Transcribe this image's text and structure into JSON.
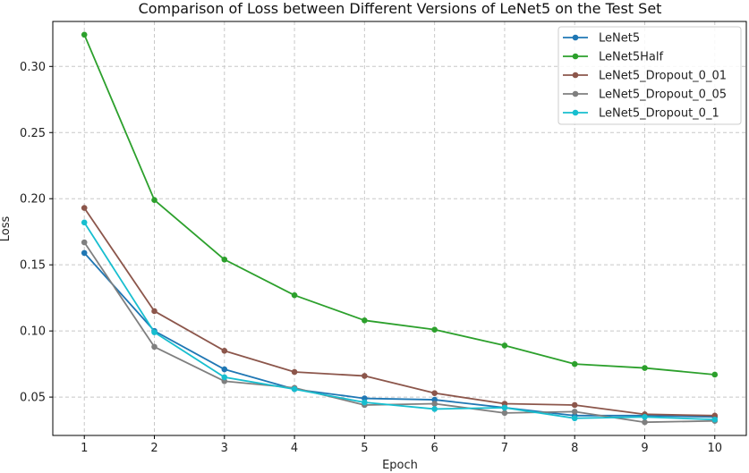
{
  "chart_data": {
    "type": "line",
    "title": "Comparison of Loss between Different Versions of LeNet5 on the Test Set",
    "xlabel": "Epoch",
    "ylabel": "Loss",
    "x": [
      1,
      2,
      3,
      4,
      5,
      6,
      7,
      8,
      9,
      10
    ],
    "xticks": [
      "1",
      "2",
      "3",
      "4",
      "5",
      "6",
      "7",
      "8",
      "9",
      "10"
    ],
    "yticks": [
      "0.05",
      "0.10",
      "0.15",
      "0.20",
      "0.25",
      "0.30"
    ],
    "ylim": [
      0.021,
      0.334
    ],
    "xlim": [
      0.55,
      10.45
    ],
    "grid": true,
    "legend_position": "top-right",
    "series": [
      {
        "name": "LeNet5",
        "color": "#1f77b4",
        "values": [
          0.159,
          0.1,
          0.071,
          0.056,
          0.049,
          0.048,
          0.042,
          0.036,
          0.036,
          0.035
        ]
      },
      {
        "name": "LeNet5Half",
        "color": "#2ca02c",
        "values": [
          0.324,
          0.199,
          0.154,
          0.127,
          0.108,
          0.101,
          0.089,
          0.075,
          0.072,
          0.067
        ]
      },
      {
        "name": "LeNet5_Dropout_0_01",
        "color": "#8c564b",
        "values": [
          0.193,
          0.115,
          0.085,
          0.069,
          0.066,
          0.053,
          0.045,
          0.044,
          0.037,
          0.036
        ]
      },
      {
        "name": "LeNet5_Dropout_0_05",
        "color": "#7f7f7f",
        "values": [
          0.167,
          0.088,
          0.062,
          0.057,
          0.044,
          0.045,
          0.038,
          0.039,
          0.031,
          0.032
        ]
      },
      {
        "name": "LeNet5_Dropout_0_1",
        "color": "#17becf",
        "values": [
          0.182,
          0.099,
          0.065,
          0.056,
          0.046,
          0.041,
          0.042,
          0.034,
          0.035,
          0.033
        ]
      }
    ]
  }
}
